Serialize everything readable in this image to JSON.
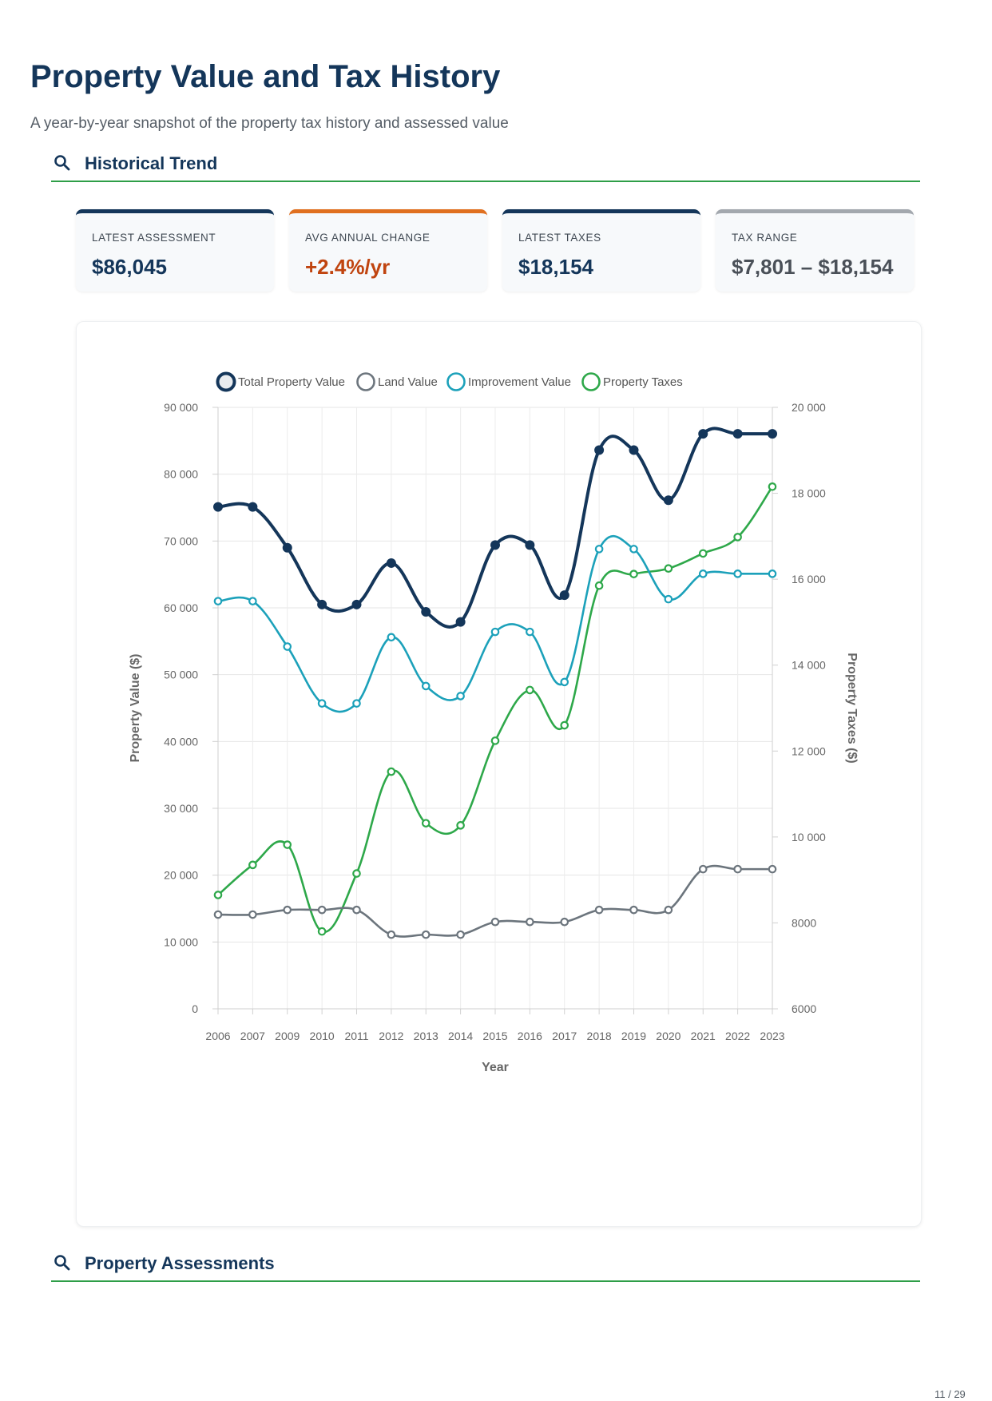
{
  "page": {
    "title": "Property Value and Tax History",
    "subtitle": "A year-by-year snapshot of the property tax history and assessed value",
    "page_number": "11 / 29"
  },
  "sections": {
    "historical_trend": "Historical Trend",
    "property_assessments": "Property Assessments"
  },
  "icons": {
    "section": "search-icon"
  },
  "cards": [
    {
      "label": "LATEST ASSESSMENT",
      "value": "$86,045",
      "accent": "#14365a",
      "value_color": "#14365a"
    },
    {
      "label": "AVG ANNUAL CHANGE",
      "value": "+2.4%/yr",
      "accent": "#e07020",
      "value_color": "#c0440f"
    },
    {
      "label": "LATEST TAXES",
      "value": "$18,154",
      "accent": "#14365a",
      "value_color": "#14365a"
    },
    {
      "label": "TAX RANGE",
      "value": "$7,801 – $18,154",
      "accent": "#a3a8ae",
      "value_color": "#4a5058"
    }
  ],
  "chart_data": {
    "type": "line",
    "xlabel": "Year",
    "ylabel": "Property Value ($)",
    "y2label": "Property Taxes ($)",
    "ylim": [
      0,
      90000
    ],
    "y2lim": [
      6000,
      20000
    ],
    "yticks": [
      "0",
      "10 000",
      "20 000",
      "30 000",
      "40 000",
      "50 000",
      "60 000",
      "70 000",
      "80 000",
      "90 000"
    ],
    "y2ticks": [
      "6000",
      "8000",
      "10 000",
      "12 000",
      "14 000",
      "16 000",
      "18 000",
      "20 000"
    ],
    "legend_position": "top",
    "grid": true,
    "categories": [
      "2006",
      "2007",
      "2009",
      "2010",
      "2011",
      "2012",
      "2013",
      "2014",
      "2015",
      "2016",
      "2017",
      "2018",
      "2019",
      "2020",
      "2021",
      "2022",
      "2023"
    ],
    "series": [
      {
        "name": "Total Property Value",
        "axis": "left",
        "color": "#14365a",
        "values": [
          75100,
          75100,
          69000,
          60500,
          60500,
          66700,
          59400,
          57900,
          69400,
          69400,
          61900,
          83600,
          83600,
          76100,
          86045,
          86045,
          86045
        ]
      },
      {
        "name": "Land Value",
        "axis": "left",
        "color": "#6c757d",
        "values": [
          14100,
          14100,
          14800,
          14800,
          14800,
          11100,
          11100,
          11100,
          13000,
          13000,
          13000,
          14800,
          14800,
          14800,
          20900,
          20900,
          20900
        ]
      },
      {
        "name": "Improvement Value",
        "axis": "left",
        "color": "#1ca1ba",
        "values": [
          61000,
          61000,
          54200,
          45700,
          45700,
          55600,
          48300,
          46800,
          56400,
          56400,
          48900,
          68800,
          68800,
          61300,
          65100,
          65100,
          65100
        ]
      },
      {
        "name": "Property Taxes",
        "axis": "right",
        "color": "#2ea84a",
        "values": [
          8650,
          9350,
          9820,
          7801,
          9150,
          11520,
          10320,
          10270,
          12240,
          13420,
          12600,
          15850,
          16120,
          16250,
          16600,
          16980,
          18154
        ]
      }
    ]
  }
}
